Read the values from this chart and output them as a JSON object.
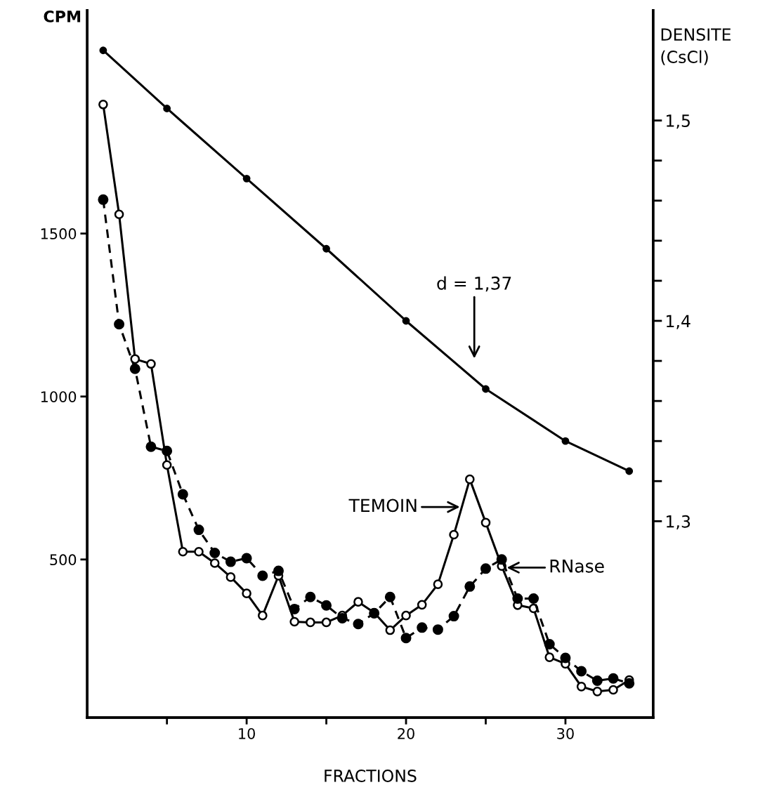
{
  "chart_data": {
    "type": "line",
    "xlabel": "FRACTIONS",
    "ylabel": "CPM",
    "y2label": "DENSITE\n(CsCl)",
    "xlim": [
      0,
      35.5
    ],
    "xticks": [
      {
        "value": 5,
        "label": null
      },
      10,
      {
        "value": 15,
        "label": null
      },
      20,
      {
        "value": 25,
        "label": null
      },
      30
    ],
    "ylim": [
      15,
      2185
    ],
    "yticks": [
      500,
      1000,
      1500
    ],
    "y2lim": [
      1.202,
      1.555
    ],
    "y2ticks": [
      {
        "value": 1.3,
        "label": "1,3"
      },
      {
        "value": 1.32,
        "label": null
      },
      {
        "value": 1.34,
        "label": null
      },
      {
        "value": 1.36,
        "label": null
      },
      {
        "value": 1.38,
        "label": null
      },
      {
        "value": 1.4,
        "label": "1,4"
      },
      {
        "value": 1.42,
        "label": null
      },
      {
        "value": 1.44,
        "label": null
      },
      {
        "value": 1.46,
        "label": null
      },
      {
        "value": 1.48,
        "label": null
      },
      {
        "value": 1.5,
        "label": "1,5"
      }
    ],
    "grid": false,
    "legend": false,
    "marker": "circle",
    "series": [
      {
        "color": "#000000",
        "line_style": "solid",
        "x": [
          1,
          2,
          3,
          4,
          5,
          6,
          7,
          8,
          9,
          10,
          11,
          12,
          13,
          14,
          15,
          16,
          17,
          18,
          19,
          20,
          21,
          22,
          23,
          24,
          25,
          26,
          27,
          28,
          29,
          30,
          31,
          32,
          33,
          34
        ],
        "values": [
          1896,
          1559,
          1115,
          1100,
          790,
          524,
          524,
          489,
          446,
          396,
          328,
          450,
          309,
          307,
          307,
          328,
          370,
          337,
          283,
          328,
          361,
          424,
          576,
          746,
          613,
          480,
          360,
          350,
          200,
          180,
          110,
          95,
          100,
          130
        ]
      },
      {
        "color": "#000000",
        "line_style": "dashed",
        "x": [
          1,
          2,
          3,
          4,
          5,
          6,
          7,
          8,
          9,
          10,
          11,
          12,
          13,
          14,
          15,
          16,
          17,
          18,
          19,
          20,
          21,
          22,
          23,
          24,
          25,
          26,
          27,
          28,
          29,
          30,
          31,
          32,
          33,
          34
        ],
        "values": [
          1604,
          1222,
          1085,
          846,
          833,
          700,
          591,
          520,
          493,
          504,
          450,
          465,
          348,
          385,
          359,
          320,
          302,
          335,
          385,
          259,
          291,
          285,
          326,
          417,
          472,
          500,
          380,
          380,
          240,
          198,
          157,
          128,
          135,
          120
        ]
      },
      {
        "color": "#000000",
        "line_style": "solid",
        "axis": "y2",
        "x": [
          1,
          5,
          10,
          15,
          20,
          25,
          30,
          34
        ],
        "values": [
          1.535,
          1.506,
          1.471,
          1.436,
          1.4,
          1.366,
          1.34,
          1.325
        ]
      }
    ],
    "annotations": [
      "d = 1,37",
      {
        "text": "TEMOIN",
        "x": 23.5,
        "y": 661
      },
      {
        "text": "RNase",
        "x": 26.2,
        "y": 475
      }
    ]
  }
}
